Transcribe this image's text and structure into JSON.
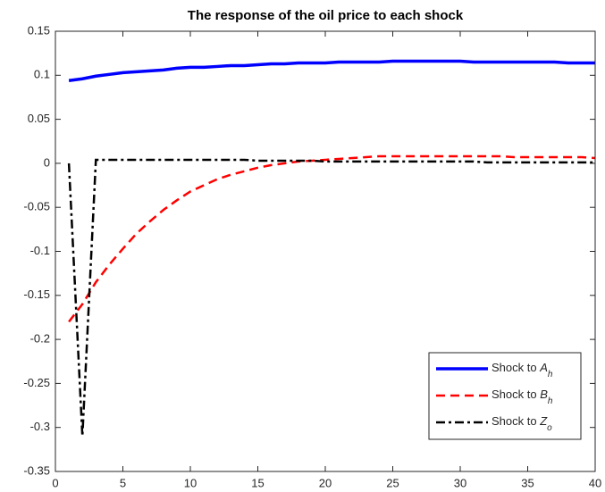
{
  "chart_data": {
    "type": "line",
    "title": "The response of the oil price to each shock",
    "x": [
      1,
      2,
      3,
      4,
      5,
      6,
      7,
      8,
      9,
      10,
      11,
      12,
      13,
      14,
      15,
      16,
      17,
      18,
      19,
      20,
      21,
      22,
      23,
      24,
      25,
      26,
      27,
      28,
      29,
      30,
      31,
      32,
      33,
      34,
      35,
      36,
      37,
      38,
      39,
      40
    ],
    "series": [
      {
        "name": "Shock to A_h",
        "color": "#0000ff",
        "dash": "solid",
        "values": [
          0.094,
          0.096,
          0.099,
          0.101,
          0.103,
          0.104,
          0.105,
          0.106,
          0.108,
          0.109,
          0.109,
          0.11,
          0.111,
          0.111,
          0.112,
          0.113,
          0.113,
          0.114,
          0.114,
          0.114,
          0.115,
          0.115,
          0.115,
          0.115,
          0.116,
          0.116,
          0.116,
          0.116,
          0.116,
          0.116,
          0.115,
          0.115,
          0.115,
          0.115,
          0.115,
          0.115,
          0.115,
          0.114,
          0.114,
          0.114
        ]
      },
      {
        "name": "Shock to B_h",
        "color": "#ff0000",
        "dash": "dashed",
        "values": [
          -0.18,
          -0.16,
          -0.135,
          -0.115,
          -0.097,
          -0.08,
          -0.066,
          -0.053,
          -0.042,
          -0.032,
          -0.025,
          -0.018,
          -0.013,
          -0.009,
          -0.005,
          -0.002,
          0.0,
          0.002,
          0.003,
          0.004,
          0.005,
          0.006,
          0.007,
          0.008,
          0.008,
          0.008,
          0.008,
          0.008,
          0.008,
          0.008,
          0.008,
          0.008,
          0.008,
          0.007,
          0.007,
          0.007,
          0.007,
          0.007,
          0.007,
          0.006
        ]
      },
      {
        "name": "Shock to Z_o",
        "color": "#000000",
        "dash": "dashdot",
        "values": [
          0.0,
          -0.31,
          0.004,
          0.004,
          0.004,
          0.004,
          0.004,
          0.004,
          0.004,
          0.004,
          0.004,
          0.004,
          0.004,
          0.004,
          0.003,
          0.003,
          0.003,
          0.003,
          0.003,
          0.002,
          0.002,
          0.002,
          0.002,
          0.002,
          0.002,
          0.002,
          0.002,
          0.002,
          0.002,
          0.002,
          0.002,
          0.001,
          0.001,
          0.001,
          0.001,
          0.001,
          0.001,
          0.001,
          0.001,
          0.001
        ]
      }
    ],
    "xlim": [
      0,
      40
    ],
    "xticks": [
      0,
      5,
      10,
      15,
      20,
      25,
      30,
      35,
      40
    ],
    "ylim": [
      -0.35,
      0.15
    ],
    "yticks": [
      -0.35,
      -0.3,
      -0.25,
      -0.2,
      -0.15,
      -0.1,
      -0.05,
      0,
      0.05,
      0.1,
      0.15
    ],
    "grid": false,
    "legend": "lower right"
  }
}
